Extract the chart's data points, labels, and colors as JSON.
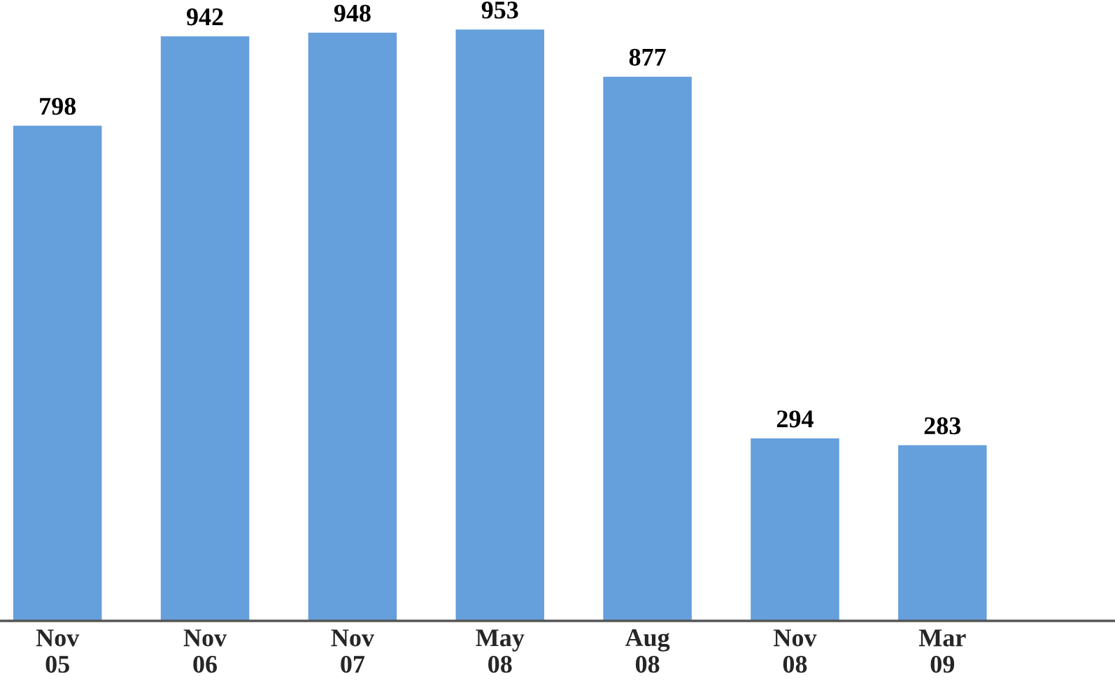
{
  "chart_data": {
    "type": "bar",
    "categories": [
      "Nov\n05",
      "Nov\n06",
      "Nov\n07",
      "May\n08",
      "Aug\n08",
      "Nov\n08",
      "Mar\n09"
    ],
    "values": [
      798,
      942,
      948,
      953,
      877,
      294,
      283
    ],
    "color": "#659fdc",
    "data_labels": true,
    "grid": false,
    "legend": false
  }
}
